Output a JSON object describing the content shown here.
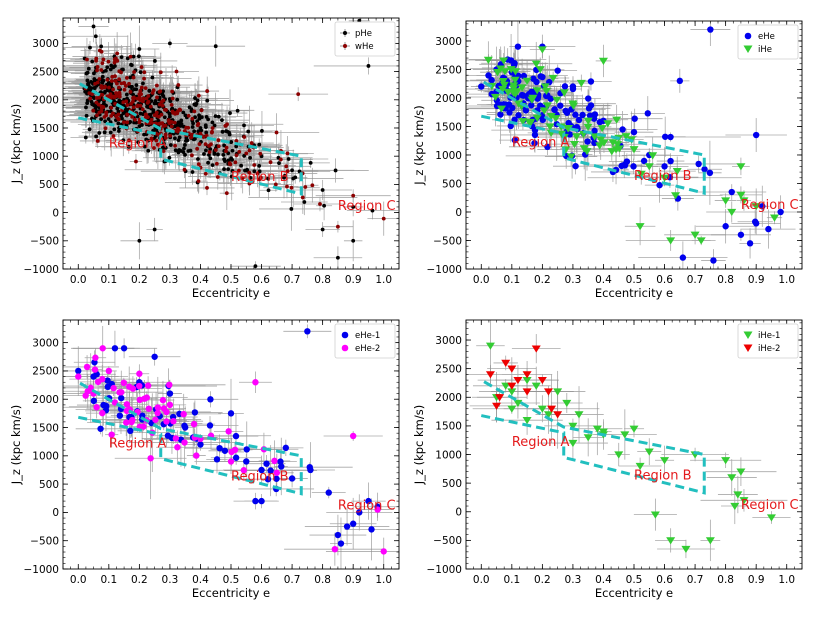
{
  "figure": {
    "layout": "2x2 grid of scatter plots with error bars"
  },
  "chart_data": [
    {
      "type": "scatter",
      "xlabel": "Eccentricity e",
      "ylabel": "J_z (kpc km/s)",
      "xlim": [
        -0.05,
        1.05
      ],
      "ylim": [
        -1000,
        3450
      ],
      "xticks": [
        0.0,
        0.1,
        0.2,
        0.3,
        0.4,
        0.5,
        0.6,
        0.7,
        0.8,
        0.9,
        1.0
      ],
      "yticks": [
        -1000,
        -500,
        0,
        500,
        1000,
        1500,
        2000,
        2500,
        3000
      ],
      "legend_position": "top-right",
      "region_labels": [
        {
          "text": "Region A",
          "x": 0.1,
          "y": 1150
        },
        {
          "text": "Region B",
          "x": 0.5,
          "y": 560
        },
        {
          "text": "Region C",
          "x": 0.85,
          "y": 50
        }
      ],
      "series": [
        {
          "name": "pHe",
          "color": "#000000",
          "marker": "dot",
          "n": 520,
          "seed": 11,
          "center": [
            0.3,
            1700
          ],
          "points": [
            [
              0.02,
              2200
            ],
            [
              0.05,
              2050
            ],
            [
              0.1,
              2300
            ],
            [
              0.15,
              2000
            ],
            [
              0.2,
              1900
            ],
            [
              0.3,
              1700
            ],
            [
              0.4,
              1500
            ],
            [
              0.5,
              1250
            ],
            [
              0.6,
              1000
            ],
            [
              0.7,
              750
            ],
            [
              0.8,
              400
            ],
            [
              0.9,
              100
            ],
            [
              0.12,
              2600
            ],
            [
              0.2,
              2900
            ],
            [
              0.05,
              3300
            ],
            [
              0.3,
              3000
            ],
            [
              0.45,
              2950
            ],
            [
              0.8,
              -300
            ],
            [
              0.9,
              -500
            ],
            [
              0.2,
              -500
            ],
            [
              0.58,
              -950
            ],
            [
              0.95,
              2600
            ],
            [
              0.92,
              3400
            ],
            [
              0.85,
              -800
            ],
            [
              0.25,
              -300
            ]
          ]
        },
        {
          "name": "wHe",
          "color": "#8b0000",
          "marker": "dot",
          "n": 300,
          "seed": 23,
          "center": [
            0.25,
            1800
          ],
          "points": [
            [
              0.1,
              2000
            ],
            [
              0.15,
              2300
            ],
            [
              0.2,
              2100
            ],
            [
              0.3,
              1600
            ],
            [
              0.4,
              1400
            ],
            [
              0.55,
              1050
            ],
            [
              0.72,
              2100
            ],
            [
              0.85,
              -250
            ],
            [
              0.9,
              300
            ]
          ]
        }
      ]
    },
    {
      "type": "scatter",
      "xlabel": "Eccentricity e",
      "ylabel": "J_z (kpc km/s)",
      "xlim": [
        -0.05,
        1.05
      ],
      "ylim": [
        -1000,
        3350
      ],
      "xticks": [
        0.0,
        0.1,
        0.2,
        0.3,
        0.4,
        0.5,
        0.6,
        0.7,
        0.8,
        0.9,
        1.0
      ],
      "yticks": [
        -1000,
        -500,
        0,
        500,
        1000,
        1500,
        2000,
        2500,
        3000
      ],
      "legend_position": "top-right",
      "region_labels": [
        {
          "text": "Region A",
          "x": 0.1,
          "y": 1150
        },
        {
          "text": "Region B",
          "x": 0.5,
          "y": 560
        },
        {
          "text": "Region C",
          "x": 0.85,
          "y": 50
        }
      ],
      "series": [
        {
          "name": "eHe",
          "color": "#0000ee",
          "marker": "circle",
          "n": 150,
          "seed": 37,
          "center": [
            0.3,
            1600
          ],
          "points": [
            [
              0.0,
              2200
            ],
            [
              0.05,
              2500
            ],
            [
              0.1,
              2450
            ],
            [
              0.12,
              2900
            ],
            [
              0.2,
              2900
            ],
            [
              0.3,
              2200
            ],
            [
              0.4,
              1600
            ],
            [
              0.5,
              1400
            ],
            [
              0.55,
              1000
            ],
            [
              0.6,
              800
            ],
            [
              0.65,
              2300
            ],
            [
              0.75,
              3200
            ],
            [
              0.8,
              -250
            ],
            [
              0.85,
              -400
            ],
            [
              0.88,
              -550
            ],
            [
              0.9,
              -200
            ],
            [
              0.92,
              100
            ],
            [
              0.94,
              -300
            ],
            [
              0.98,
              0
            ],
            [
              0.9,
              1350
            ],
            [
              0.82,
              350
            ],
            [
              0.66,
              -800
            ],
            [
              0.76,
              -850
            ]
          ]
        },
        {
          "name": "iHe",
          "color": "#33cc33",
          "marker": "triangle-down",
          "n": 75,
          "seed": 53,
          "center": [
            0.28,
            1800
          ],
          "points": [
            [
              0.2,
              2850
            ],
            [
              0.18,
              2600
            ],
            [
              0.15,
              2300
            ],
            [
              0.3,
              1900
            ],
            [
              0.4,
              2650
            ],
            [
              0.35,
              1600
            ],
            [
              0.45,
              1300
            ],
            [
              0.5,
              1100
            ],
            [
              0.55,
              800
            ],
            [
              0.6,
              600
            ],
            [
              0.62,
              -500
            ],
            [
              0.7,
              -400
            ],
            [
              0.72,
              -500
            ],
            [
              0.8,
              200
            ],
            [
              0.82,
              0
            ],
            [
              0.85,
              800
            ],
            [
              0.86,
              200
            ],
            [
              0.85,
              300
            ],
            [
              0.9,
              100
            ],
            [
              0.52,
              -250
            ],
            [
              0.96,
              -100
            ]
          ]
        }
      ]
    },
    {
      "type": "scatter",
      "xlabel": "Eccentricity e",
      "ylabel": "J_z (kpc km/s)",
      "xlim": [
        -0.05,
        1.05
      ],
      "ylim": [
        -1000,
        3400
      ],
      "xticks": [
        0.0,
        0.1,
        0.2,
        0.3,
        0.4,
        0.5,
        0.6,
        0.7,
        0.8,
        0.9,
        1.0
      ],
      "yticks": [
        -1000,
        -500,
        0,
        500,
        1000,
        1500,
        2000,
        2500,
        3000
      ],
      "legend_position": "top-right",
      "region_labels": [
        {
          "text": "Region A",
          "x": 0.1,
          "y": 1150
        },
        {
          "text": "Region B",
          "x": 0.5,
          "y": 560
        },
        {
          "text": "Region C",
          "x": 0.85,
          "y": 50
        }
      ],
      "series": [
        {
          "name": "eHe-1",
          "color": "#0000ee",
          "marker": "circle",
          "n": 55,
          "seed": 71,
          "center": [
            0.3,
            1500
          ],
          "points": [
            [
              0.0,
              2500
            ],
            [
              0.05,
              2400
            ],
            [
              0.12,
              2900
            ],
            [
              0.15,
              2900
            ],
            [
              0.25,
              2750
            ],
            [
              0.2,
              2300
            ],
            [
              0.3,
              2100
            ],
            [
              0.35,
              1500
            ],
            [
              0.4,
              1200
            ],
            [
              0.5,
              1750
            ],
            [
              0.55,
              900
            ],
            [
              0.6,
              750
            ],
            [
              0.58,
              200
            ],
            [
              0.6,
              200
            ],
            [
              0.75,
              3200
            ],
            [
              0.76,
              750
            ],
            [
              0.82,
              350
            ],
            [
              0.85,
              -400
            ],
            [
              0.86,
              -550
            ],
            [
              0.88,
              -250
            ],
            [
              0.9,
              -200
            ],
            [
              0.92,
              0
            ],
            [
              0.95,
              200
            ],
            [
              0.96,
              -300
            ],
            [
              0.98,
              100
            ],
            [
              0.7,
              600
            ]
          ]
        },
        {
          "name": "eHe-2",
          "color": "#ff00ff",
          "marker": "circle",
          "n": 60,
          "seed": 89,
          "center": [
            0.25,
            1700
          ],
          "points": [
            [
              0.0,
              2400
            ],
            [
              0.05,
              2100
            ],
            [
              0.08,
              2900
            ],
            [
              0.1,
              2500
            ],
            [
              0.2,
              2450
            ],
            [
              0.3,
              1900
            ],
            [
              0.4,
              1300
            ],
            [
              0.5,
              900
            ],
            [
              0.58,
              2300
            ],
            [
              0.65,
              700
            ],
            [
              0.9,
              1350
            ],
            [
              0.84,
              -650
            ],
            [
              0.98,
              50
            ]
          ]
        }
      ]
    },
    {
      "type": "scatter",
      "xlabel": "Eccentricity e",
      "ylabel": "J_z (kpc km/s)",
      "xlim": [
        -0.05,
        1.05
      ],
      "ylim": [
        -1000,
        3350
      ],
      "xticks": [
        0.0,
        0.1,
        0.2,
        0.3,
        0.4,
        0.5,
        0.6,
        0.7,
        0.8,
        0.9,
        1.0
      ],
      "yticks": [
        -1000,
        -500,
        0,
        500,
        1000,
        1500,
        2000,
        2500,
        3000
      ],
      "legend_position": "top-right",
      "region_labels": [
        {
          "text": "Region A",
          "x": 0.1,
          "y": 1150
        },
        {
          "text": "Region B",
          "x": 0.5,
          "y": 560
        },
        {
          "text": "Region C",
          "x": 0.85,
          "y": 50
        }
      ],
      "series": [
        {
          "name": "iHe-1",
          "color": "#33cc33",
          "marker": "triangle-down",
          "n": 0,
          "seed": 97,
          "center": [
            0.3,
            1500
          ],
          "points": [
            [
              0.03,
              2900
            ],
            [
              0.05,
              2000
            ],
            [
              0.08,
              2200
            ],
            [
              0.1,
              2100
            ],
            [
              0.12,
              1900
            ],
            [
              0.15,
              2300
            ],
            [
              0.18,
              2200
            ],
            [
              0.2,
              1800
            ],
            [
              0.25,
              2100
            ],
            [
              0.28,
              1900
            ],
            [
              0.3,
              1500
            ],
            [
              0.35,
              1300
            ],
            [
              0.38,
              1450
            ],
            [
              0.4,
              1350
            ],
            [
              0.45,
              1000
            ],
            [
              0.47,
              1350
            ],
            [
              0.5,
              1450
            ],
            [
              0.52,
              800
            ],
            [
              0.55,
              1050
            ],
            [
              0.6,
              900
            ],
            [
              0.62,
              -500
            ],
            [
              0.67,
              -650
            ],
            [
              0.7,
              1000
            ],
            [
              0.75,
              -500
            ],
            [
              0.8,
              900
            ],
            [
              0.82,
              600
            ],
            [
              0.83,
              100
            ],
            [
              0.84,
              300
            ],
            [
              0.85,
              700
            ],
            [
              0.86,
              200
            ],
            [
              0.57,
              -50
            ],
            [
              0.95,
              -100
            ],
            [
              0.4,
              1400
            ],
            [
              0.32,
              1700
            ],
            [
              0.22,
              1700
            ],
            [
              0.15,
              1600
            ],
            [
              0.1,
              1800
            ],
            [
              0.3,
              1200
            ]
          ]
        },
        {
          "name": "iHe-2",
          "color": "#ee0000",
          "marker": "triangle-down",
          "n": 0,
          "seed": 101,
          "center": [
            0.15,
            2300
          ],
          "points": [
            [
              0.03,
              2400
            ],
            [
              0.06,
              2000
            ],
            [
              0.08,
              2600
            ],
            [
              0.1,
              2500
            ],
            [
              0.12,
              2300
            ],
            [
              0.15,
              2400
            ],
            [
              0.18,
              2850
            ],
            [
              0.2,
              2300
            ],
            [
              0.22,
              2100
            ],
            [
              0.23,
              1800
            ],
            [
              0.25,
              1700
            ],
            [
              0.15,
              2100
            ],
            [
              0.1,
              2200
            ],
            [
              0.05,
              1850
            ]
          ]
        }
      ]
    }
  ]
}
